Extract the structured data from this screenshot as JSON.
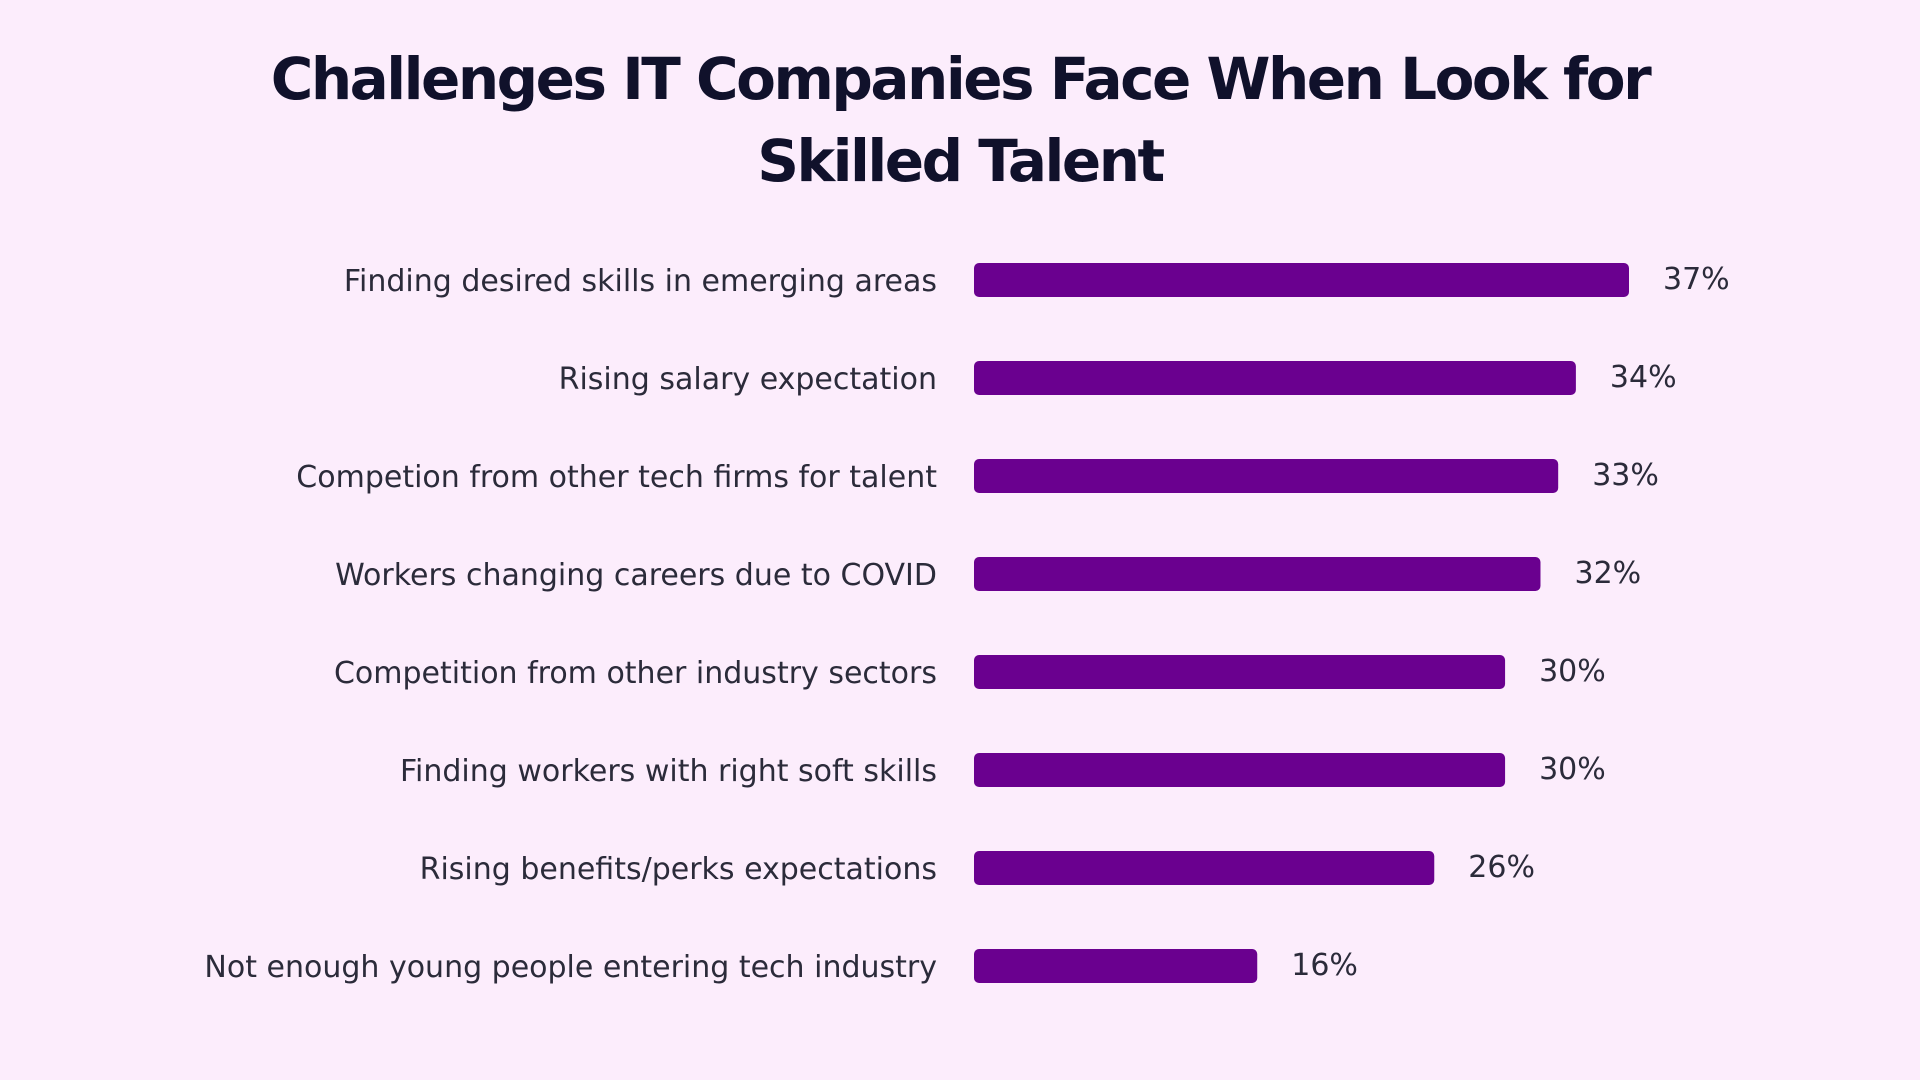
{
  "title_lines": [
    "Challenges IT Companies Face When Look for",
    "Skilled Talent"
  ],
  "colors": {
    "background": "#fcedfc",
    "bar": "#6a008f",
    "title": "#10112b",
    "text": "#2b2b3a"
  },
  "chart_data": {
    "type": "bar",
    "orientation": "horizontal",
    "title": "Challenges IT Companies Face When Look for Skilled Talent",
    "categories": [
      "Finding desired skills in emerging areas",
      "Rising salary expectation",
      "Competion from other tech firms for talent",
      "Workers changing careers due to COVID",
      "Competition from other industry sectors",
      "Finding workers with right soft skills",
      "Rising benefits/perks expectations",
      "Not enough young people entering tech industry"
    ],
    "values": [
      37,
      34,
      33,
      32,
      30,
      30,
      26,
      16
    ],
    "value_labels": [
      "37%",
      "34%",
      "33%",
      "32%",
      "30%",
      "30%",
      "26%",
      "16%"
    ],
    "xlabel": "",
    "ylabel": "",
    "xlim": [
      0,
      37
    ],
    "grid": false,
    "legend": "none"
  }
}
